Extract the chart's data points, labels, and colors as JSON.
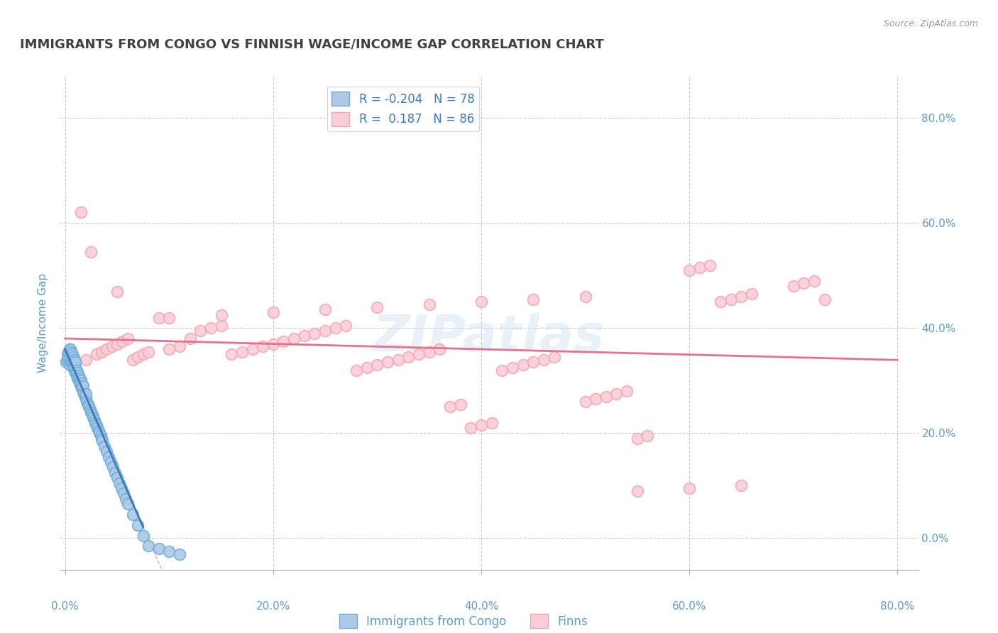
{
  "title": "IMMIGRANTS FROM CONGO VS FINNISH WAGE/INCOME GAP CORRELATION CHART",
  "source": "Source: ZipAtlas.com",
  "ylabel": "Wage/Income Gap",
  "watermark": "ZIPatlas",
  "legend_r1": "R = -0.204",
  "legend_n1": "N = 78",
  "legend_r2": "R =  0.187",
  "legend_n2": "N = 86",
  "blue_color": "#6baed6",
  "blue_fill": "#aec8e8",
  "pink_color": "#f4a5b4",
  "pink_fill": "#f9cdd6",
  "blue_line_color": "#3a7abf",
  "pink_line_color": "#e8708a",
  "legend_text_color": "#3a7abf",
  "axis_label_color": "#5b9bd5",
  "title_color": "#404040",
  "grid_color": "#cccccc",
  "blue_R": -0.204,
  "blue_N": 78,
  "pink_R": 0.187,
  "pink_N": 86,
  "blue_points_x": [
    0.001,
    0.002,
    0.002,
    0.003,
    0.003,
    0.004,
    0.004,
    0.005,
    0.005,
    0.005,
    0.006,
    0.006,
    0.006,
    0.007,
    0.007,
    0.007,
    0.008,
    0.008,
    0.008,
    0.009,
    0.009,
    0.009,
    0.01,
    0.01,
    0.01,
    0.011,
    0.011,
    0.012,
    0.012,
    0.013,
    0.013,
    0.014,
    0.014,
    0.015,
    0.015,
    0.016,
    0.016,
    0.017,
    0.017,
    0.018,
    0.019,
    0.02,
    0.02,
    0.021,
    0.022,
    0.023,
    0.024,
    0.025,
    0.026,
    0.027,
    0.028,
    0.029,
    0.03,
    0.031,
    0.032,
    0.033,
    0.034,
    0.035,
    0.036,
    0.038,
    0.04,
    0.042,
    0.044,
    0.046,
    0.048,
    0.05,
    0.052,
    0.054,
    0.056,
    0.058,
    0.06,
    0.065,
    0.07,
    0.075,
    0.08,
    0.09,
    0.1,
    0.11
  ],
  "blue_points_y": [
    0.335,
    0.34,
    0.35,
    0.345,
    0.355,
    0.33,
    0.36,
    0.34,
    0.35,
    0.36,
    0.335,
    0.345,
    0.355,
    0.33,
    0.34,
    0.35,
    0.325,
    0.335,
    0.345,
    0.32,
    0.33,
    0.34,
    0.315,
    0.325,
    0.335,
    0.31,
    0.32,
    0.305,
    0.315,
    0.3,
    0.31,
    0.295,
    0.305,
    0.29,
    0.3,
    0.285,
    0.295,
    0.28,
    0.29,
    0.275,
    0.27,
    0.265,
    0.275,
    0.26,
    0.255,
    0.25,
    0.245,
    0.24,
    0.235,
    0.23,
    0.225,
    0.22,
    0.215,
    0.21,
    0.205,
    0.2,
    0.195,
    0.19,
    0.185,
    0.175,
    0.165,
    0.155,
    0.145,
    0.135,
    0.125,
    0.115,
    0.105,
    0.095,
    0.085,
    0.075,
    0.065,
    0.045,
    0.025,
    0.005,
    -0.015,
    -0.02,
    -0.025,
    -0.03
  ],
  "pink_points_x": [
    0.005,
    0.01,
    0.015,
    0.02,
    0.025,
    0.03,
    0.035,
    0.04,
    0.045,
    0.05,
    0.055,
    0.06,
    0.065,
    0.07,
    0.075,
    0.08,
    0.09,
    0.1,
    0.11,
    0.12,
    0.13,
    0.14,
    0.15,
    0.16,
    0.17,
    0.18,
    0.19,
    0.2,
    0.21,
    0.22,
    0.23,
    0.24,
    0.25,
    0.26,
    0.27,
    0.28,
    0.29,
    0.3,
    0.31,
    0.32,
    0.33,
    0.34,
    0.35,
    0.36,
    0.37,
    0.38,
    0.39,
    0.4,
    0.41,
    0.42,
    0.43,
    0.44,
    0.45,
    0.46,
    0.47,
    0.5,
    0.51,
    0.52,
    0.53,
    0.54,
    0.55,
    0.56,
    0.6,
    0.61,
    0.62,
    0.63,
    0.64,
    0.65,
    0.66,
    0.7,
    0.71,
    0.72,
    0.73,
    0.05,
    0.1,
    0.15,
    0.2,
    0.25,
    0.3,
    0.35,
    0.4,
    0.45,
    0.5,
    0.55,
    0.6,
    0.65
  ],
  "pink_points_y": [
    0.33,
    0.335,
    0.62,
    0.34,
    0.545,
    0.35,
    0.355,
    0.36,
    0.365,
    0.37,
    0.375,
    0.38,
    0.34,
    0.345,
    0.35,
    0.355,
    0.42,
    0.36,
    0.365,
    0.38,
    0.395,
    0.4,
    0.405,
    0.35,
    0.355,
    0.36,
    0.365,
    0.37,
    0.375,
    0.38,
    0.385,
    0.39,
    0.395,
    0.4,
    0.405,
    0.32,
    0.325,
    0.33,
    0.335,
    0.34,
    0.345,
    0.35,
    0.355,
    0.36,
    0.25,
    0.255,
    0.21,
    0.215,
    0.22,
    0.32,
    0.325,
    0.33,
    0.335,
    0.34,
    0.345,
    0.26,
    0.265,
    0.27,
    0.275,
    0.28,
    0.19,
    0.195,
    0.51,
    0.515,
    0.52,
    0.45,
    0.455,
    0.46,
    0.465,
    0.48,
    0.485,
    0.49,
    0.455,
    0.47,
    0.42,
    0.425,
    0.43,
    0.435,
    0.44,
    0.445,
    0.45,
    0.455,
    0.46,
    0.09,
    0.095,
    0.1
  ]
}
